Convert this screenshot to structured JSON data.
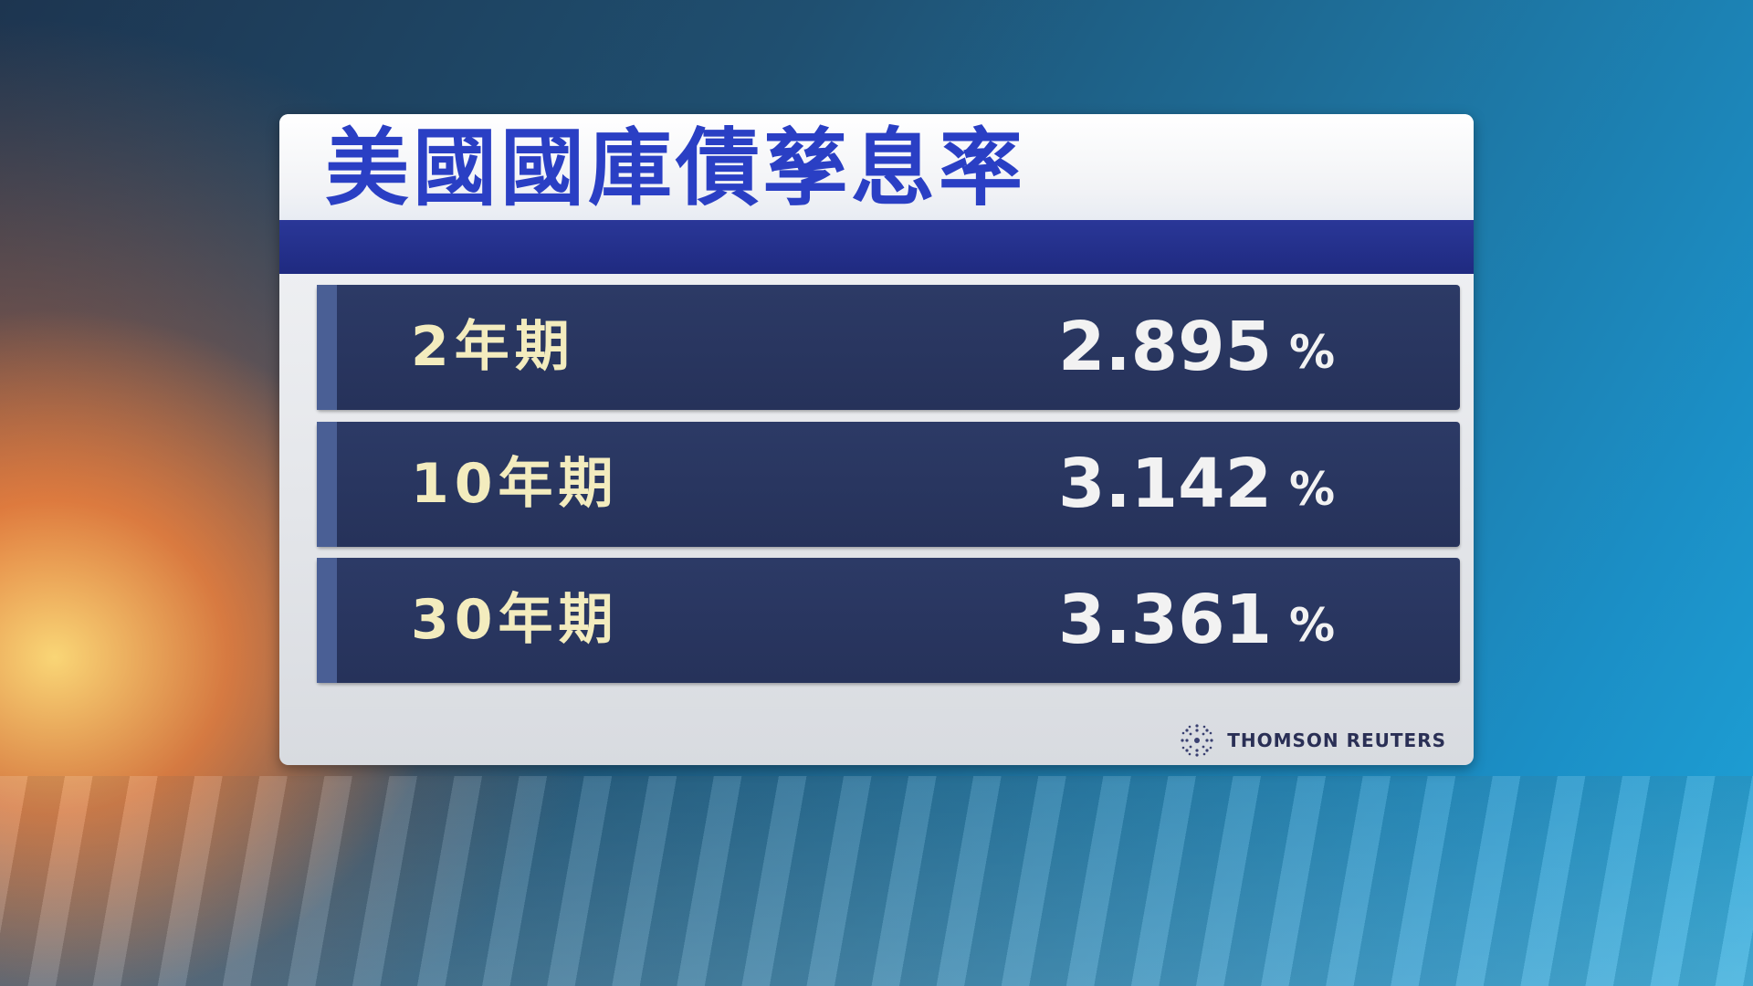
{
  "title": "美國國庫債孳息率",
  "rows": [
    {
      "label": "2年期",
      "value": "2.895",
      "unit": "%"
    },
    {
      "label": "10年期",
      "value": "3.142",
      "unit": "%"
    },
    {
      "label": "30年期",
      "value": "3.361",
      "unit": "%"
    }
  ],
  "source": {
    "logo_text": "THOMSON REUTERS",
    "icon": "thomson-reuters-logo-icon"
  },
  "colors": {
    "title": "#2a3fc4",
    "row_bg": "#2c3a66",
    "label": "#f3ecbe",
    "value": "#f2f2f2",
    "bar": "#2a3798"
  }
}
